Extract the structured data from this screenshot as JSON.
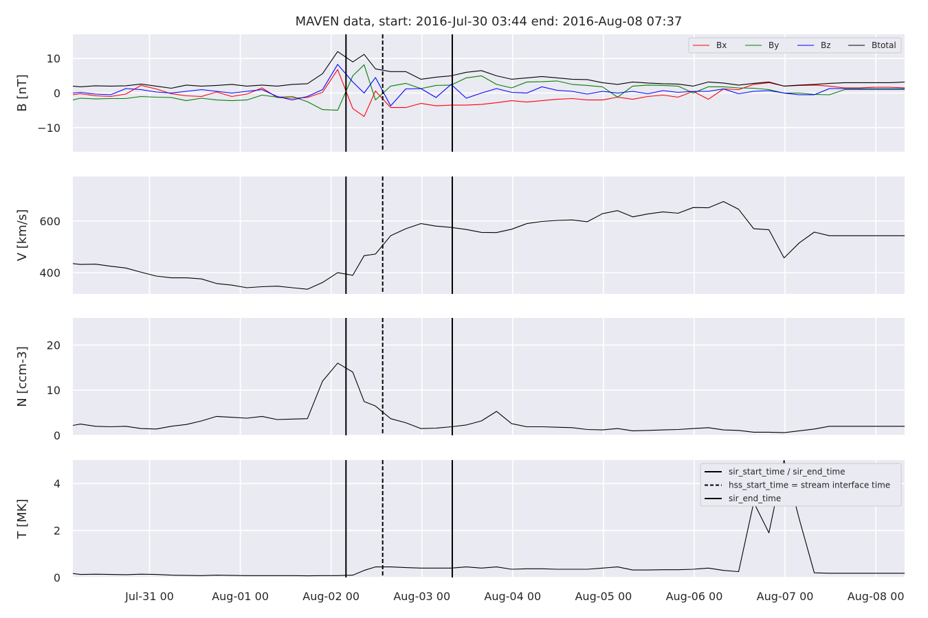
{
  "chart_data": {
    "type": "line",
    "title": "MAVEN data, start: 2016-Jul-30 03:44  end: 2016-Aug-08 07:37",
    "x_tick_labels": [
      "Jul-31 00",
      "Aug-01 00",
      "Aug-02 00",
      "Aug-03 00",
      "Aug-04 00",
      "Aug-05 00",
      "Aug-06 00",
      "Aug-07 00",
      "Aug-08 00"
    ],
    "x_tick_hours": [
      20.27,
      44.27,
      68.27,
      92.27,
      116.27,
      140.27,
      164.27,
      188.27,
      212.27
    ],
    "x_range_hours": [
      0,
      219.88
    ],
    "x": [
      0,
      2,
      6,
      10,
      14,
      18,
      22,
      26,
      30,
      34,
      38,
      42,
      46,
      50,
      54,
      58,
      62,
      66,
      70,
      74,
      77,
      80,
      84,
      88,
      92,
      96,
      100,
      104,
      108,
      112,
      116,
      120,
      124,
      128,
      132,
      136,
      140,
      144,
      148,
      152,
      156,
      160,
      164,
      168,
      172,
      176,
      180,
      184,
      188,
      192,
      196,
      200,
      204,
      208,
      212,
      216,
      219.88
    ],
    "vertical_lines_hours": [
      {
        "x": 72.2,
        "style": "solid"
      },
      {
        "x": 81.9,
        "style": "dashed"
      },
      {
        "x": 100.3,
        "style": "solid"
      }
    ],
    "panels": [
      {
        "ylabel": "B [nT]",
        "ylim": [
          -17,
          17
        ],
        "yticks": [
          -10,
          0,
          10
        ],
        "legend": "top-right",
        "series": [
          {
            "name": "Bx",
            "color": "#ff0000",
            "values": [
              -0.5,
              -0.2,
              -0.8,
              -1.0,
              -0.3,
              2.2,
              1.2,
              -0.2,
              -0.8,
              -1.0,
              0.3,
              -1.0,
              -0.3,
              1.5,
              -1.3,
              -1.5,
              -1.3,
              0.2,
              6.8,
              -4.5,
              -6.8,
              0.6,
              -4.2,
              -4.2,
              -3.0,
              -3.7,
              -3.5,
              -3.5,
              -3.3,
              -2.8,
              -2.2,
              -2.6,
              -2.2,
              -1.8,
              -1.6,
              -2.0,
              -2.0,
              -1.2,
              -1.8,
              -1.0,
              -0.6,
              -1.2,
              0.5,
              -1.8,
              1.2,
              1.0,
              2.5,
              3.0,
              2.0,
              2.2,
              2.3,
              2.0,
              1.5,
              1.5,
              1.7,
              1.7,
              1.5
            ]
          },
          {
            "name": "By",
            "color": "#008000",
            "values": [
              -2.0,
              -1.5,
              -1.7,
              -1.6,
              -1.6,
              -1.0,
              -1.2,
              -1.3,
              -2.2,
              -1.5,
              -2.0,
              -2.2,
              -2.0,
              -0.6,
              -1.2,
              -1.0,
              -2.5,
              -4.8,
              -5.0,
              5.0,
              8.2,
              -2.0,
              2.0,
              2.8,
              1.3,
              2.2,
              2.3,
              4.4,
              5.0,
              2.5,
              1.5,
              3.2,
              3.3,
              3.5,
              2.5,
              2.2,
              1.8,
              -1.2,
              2.0,
              2.3,
              2.2,
              2.0,
              0.0,
              1.8,
              1.8,
              1.5,
              1.4,
              1.0,
              0.0,
              0.0,
              -0.4,
              -0.5,
              1.0,
              1.0,
              1.0,
              1.0,
              1.0
            ]
          },
          {
            "name": "Bz",
            "color": "#0000ff",
            "values": [
              0.0,
              0.2,
              -0.3,
              -0.5,
              1.3,
              1.0,
              0.3,
              0.0,
              0.5,
              1.0,
              0.5,
              0.0,
              0.5,
              1.0,
              -1.0,
              -2.0,
              -1.0,
              1.0,
              8.3,
              3.2,
              0.0,
              4.5,
              -3.7,
              1.2,
              1.3,
              -1.3,
              2.5,
              -1.5,
              0.0,
              1.3,
              0.2,
              0.0,
              1.8,
              0.8,
              0.5,
              -0.3,
              0.5,
              0.0,
              0.5,
              -0.2,
              0.7,
              0.2,
              0.5,
              0.5,
              1.2,
              -0.2,
              0.5,
              0.7,
              0.0,
              -0.5,
              -0.5,
              1.3,
              1.3,
              1.3,
              1.3,
              1.3,
              1.3
            ]
          },
          {
            "name": "Btotal",
            "color": "#000000",
            "values": [
              2.0,
              1.8,
              2.1,
              2.0,
              2.1,
              2.6,
              2.0,
              1.4,
              2.3,
              2.0,
              2.2,
              2.5,
              2.0,
              2.3,
              2.0,
              2.5,
              2.7,
              5.6,
              12.0,
              9.0,
              11.2,
              7.0,
              6.2,
              6.2,
              4.0,
              4.6,
              5.0,
              6.0,
              6.5,
              5.0,
              4.0,
              4.4,
              4.8,
              4.4,
              4.0,
              3.9,
              3.0,
              2.5,
              3.2,
              2.9,
              2.7,
              2.6,
              2.0,
              3.2,
              2.9,
              2.3,
              2.8,
              3.2,
              2.0,
              2.3,
              2.5,
              2.8,
              3.0,
              3.0,
              3.0,
              3.0,
              3.2
            ]
          }
        ]
      },
      {
        "ylabel": "V [km/s]",
        "ylim": [
          318,
          772
        ],
        "yticks": [
          400,
          600
        ],
        "series": [
          {
            "color": "#000000",
            "values": [
              435,
              432,
              433,
              425,
              418,
              402,
              387,
              380,
              380,
              376,
              358,
              352,
              342,
              346,
              348,
              342,
              336,
              362,
              400,
              390,
              466,
              472,
              543,
              570,
              590,
              580,
              575,
              567,
              556,
              555,
              568,
              590,
              598,
              602,
              604,
              597,
              628,
              640,
              616,
              627,
              635,
              630,
              652,
              651,
              675,
              645,
              570,
              566,
              457,
              515,
              557,
              543,
              543,
              543,
              543,
              543,
              543
            ]
          }
        ]
      },
      {
        "ylabel": "N [ccm-3]",
        "ylim": [
          0,
          26
        ],
        "yticks": [
          0,
          10,
          20
        ],
        "series": [
          {
            "color": "#000000",
            "values": [
              2.2,
              2.5,
              2.0,
              1.9,
              2.0,
              1.5,
              1.4,
              2.0,
              2.4,
              3.2,
              4.2,
              4.0,
              3.8,
              4.2,
              3.5,
              3.6,
              3.7,
              12.0,
              16.0,
              14.0,
              7.5,
              6.5,
              3.7,
              2.8,
              1.5,
              1.6,
              1.9,
              2.3,
              3.2,
              5.3,
              2.6,
              1.9,
              1.9,
              1.8,
              1.7,
              1.3,
              1.2,
              1.5,
              1.0,
              1.1,
              1.2,
              1.3,
              1.5,
              1.7,
              1.2,
              1.1,
              0.7,
              0.7,
              0.6,
              1.0,
              1.4,
              2.0,
              2.0,
              2.0,
              2.0,
              2.0,
              2.0
            ]
          }
        ]
      },
      {
        "ylabel": "T [MK]",
        "ylim": [
          0,
          5
        ],
        "yticks": [
          0,
          2,
          4
        ],
        "legend": "top-right",
        "legend_entries": [
          {
            "label": "sir_start_time / sir_end_time",
            "style": "solid"
          },
          {
            "label": "hss_start_time = stream interface time",
            "style": "dashed"
          },
          {
            "label": "sir_end_time",
            "style": "solid"
          }
        ],
        "series": [
          {
            "color": "#000000",
            "values": [
              0.17,
              0.13,
              0.14,
              0.13,
              0.12,
              0.14,
              0.13,
              0.1,
              0.09,
              0.08,
              0.1,
              0.09,
              0.08,
              0.08,
              0.08,
              0.08,
              0.07,
              0.08,
              0.08,
              0.1,
              0.3,
              0.45,
              0.45,
              0.42,
              0.4,
              0.4,
              0.4,
              0.45,
              0.4,
              0.45,
              0.35,
              0.37,
              0.37,
              0.35,
              0.35,
              0.35,
              0.4,
              0.45,
              0.32,
              0.32,
              0.33,
              0.33,
              0.35,
              0.4,
              0.3,
              0.25,
              3.2,
              1.9,
              5.0,
              2.5,
              0.2,
              0.18,
              0.18,
              0.18,
              0.18,
              0.18,
              0.18
            ]
          }
        ]
      }
    ]
  }
}
